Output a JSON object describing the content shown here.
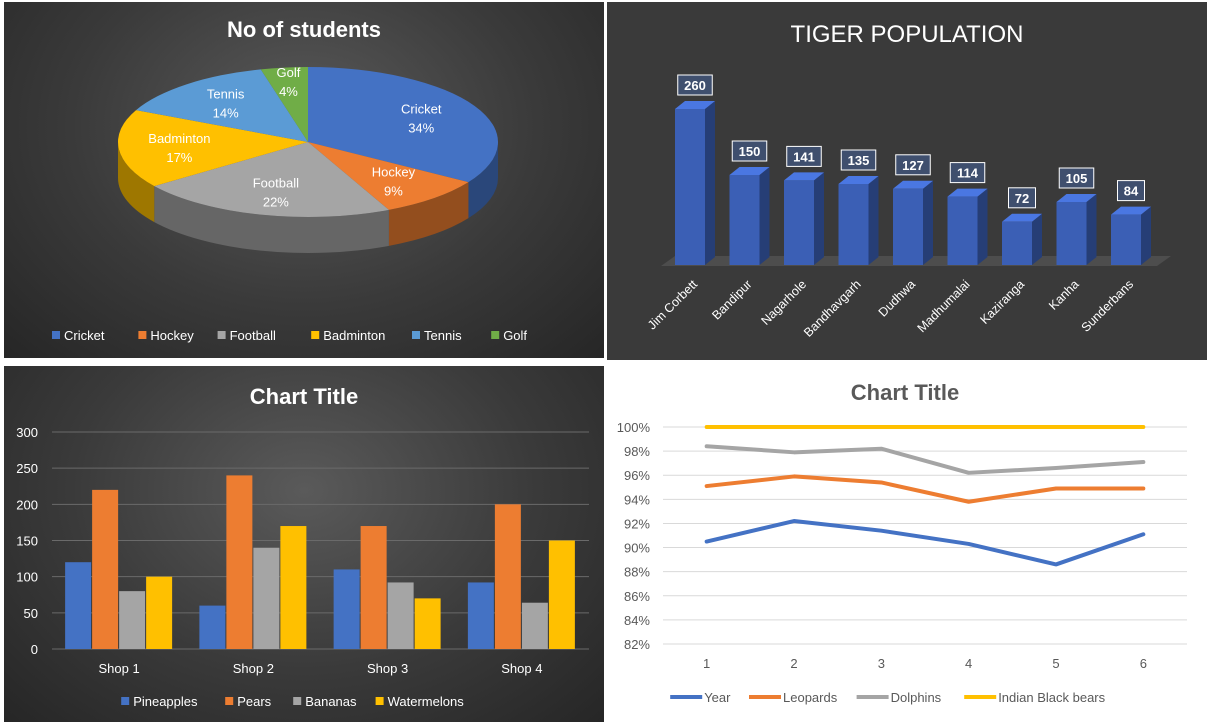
{
  "colors": {
    "blue": "#4472c4",
    "orange": "#ed7d31",
    "gray": "#a5a5a5",
    "yellow": "#ffc000",
    "lightblue": "#5b9bd5",
    "green": "#70ad47",
    "tiger_bar": "#3b5fb5"
  },
  "chart_data": [
    {
      "type": "pie",
      "title": "No of students",
      "categories": [
        "Cricket",
        "Hockey",
        "Football",
        "Badminton",
        "Tennis",
        "Golf"
      ],
      "values": [
        34,
        9,
        22,
        17,
        14,
        4
      ],
      "labels": [
        "34%",
        "9%",
        "22%",
        "17%",
        "14%",
        "4%"
      ],
      "colors": [
        "#4472c4",
        "#ed7d31",
        "#a5a5a5",
        "#ffc000",
        "#5b9bd5",
        "#70ad47"
      ],
      "legend": "bottom"
    },
    {
      "type": "bar",
      "title": "TIGER POPULATION",
      "categories": [
        "Jim Corbett",
        "Bandipur",
        "Nagarhole",
        "Bandhavgarh",
        "Dudhwa",
        "Madhumalai",
        "Kaziranga",
        "Kanha",
        "Sunderbans"
      ],
      "values": [
        260,
        150,
        141,
        135,
        127,
        114,
        72,
        105,
        84
      ],
      "data_labels": [
        "260",
        "150",
        "141",
        "135",
        "127",
        "114",
        "72",
        "105",
        "84"
      ],
      "ylim": [
        0,
        280
      ]
    },
    {
      "type": "bar",
      "title": "Chart Title",
      "categories": [
        "Shop 1",
        "Shop 2",
        "Shop 3",
        "Shop 4"
      ],
      "series": [
        {
          "name": "Pineapples",
          "values": [
            120,
            60,
            110,
            92
          ]
        },
        {
          "name": "Pears",
          "values": [
            220,
            240,
            170,
            200
          ]
        },
        {
          "name": "Bananas",
          "values": [
            80,
            140,
            92,
            64
          ]
        },
        {
          "name": "Watermelons",
          "values": [
            100,
            170,
            70,
            150
          ]
        }
      ],
      "ylim": [
        0,
        300
      ],
      "yticks": [
        "0",
        "50",
        "100",
        "150",
        "200",
        "250",
        "300"
      ],
      "grid": true,
      "legend": "bottom"
    },
    {
      "type": "line",
      "title": "Chart Title",
      "x": [
        "1",
        "2",
        "3",
        "4",
        "5",
        "6"
      ],
      "series": [
        {
          "name": "Year",
          "values": [
            90.5,
            92.2,
            91.4,
            90.3,
            88.6,
            91.1
          ]
        },
        {
          "name": "Leopards",
          "values": [
            95.1,
            95.9,
            95.4,
            93.8,
            94.9,
            94.9
          ]
        },
        {
          "name": "Dolphins",
          "values": [
            98.4,
            97.9,
            98.2,
            96.2,
            96.6,
            97.1
          ]
        },
        {
          "name": "Indian Black bears",
          "values": [
            100,
            100,
            100,
            100,
            100,
            100
          ]
        }
      ],
      "ylim": [
        82,
        100
      ],
      "yticks": [
        "82%",
        "84%",
        "86%",
        "88%",
        "90%",
        "92%",
        "94%",
        "96%",
        "98%",
        "100%"
      ],
      "grid": true,
      "legend": "bottom"
    }
  ]
}
